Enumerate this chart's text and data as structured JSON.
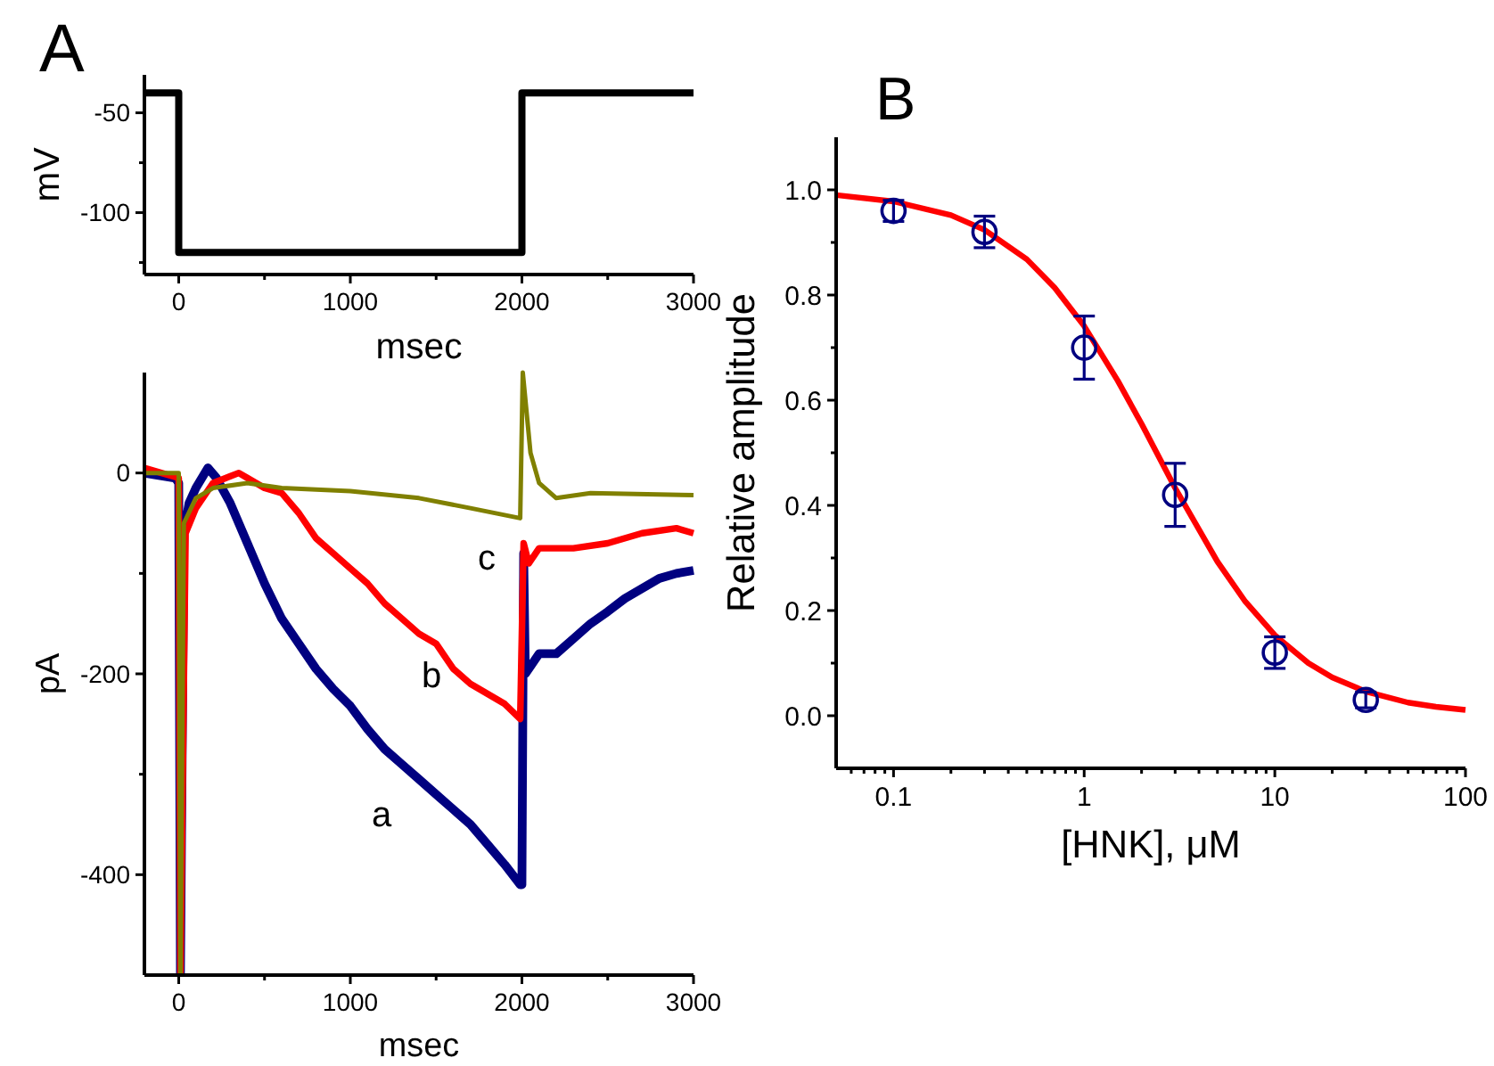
{
  "chart_data": [
    {
      "type": "line",
      "title": "A",
      "xlabel": "msec",
      "ylabel": "mV",
      "xlim": [
        -200,
        3000
      ],
      "ylim": [
        -131,
        -31
      ],
      "xticks": [
        0,
        {
          "value": 500,
          "label": null
        },
        1000,
        {
          "value": 1500,
          "label": null
        },
        2000,
        {
          "value": 2500,
          "label": null
        },
        3000
      ],
      "yticks": [
        {
          "value": -125,
          "label": null
        },
        -100,
        {
          "value": -75,
          "label": null
        },
        -50
      ],
      "series": [
        {
          "color": "#000000",
          "x": [
            -200,
            0,
            0,
            2000,
            2000,
            3000
          ],
          "values": [
            -40,
            -40,
            -120,
            -120,
            -40,
            -40
          ]
        }
      ]
    },
    {
      "type": "line",
      "xlabel": "msec",
      "ylabel": "pA",
      "xlim": [
        -200,
        3000
      ],
      "ylim": [
        -500,
        100
      ],
      "xticks": [
        0,
        {
          "value": 500,
          "label": null
        },
        1000,
        {
          "value": 1500,
          "label": null
        },
        2000,
        {
          "value": 2500,
          "label": null
        },
        3000
      ],
      "yticks": [
        -400,
        {
          "value": -300,
          "label": null
        },
        -200,
        {
          "value": -100,
          "label": null
        },
        0
      ],
      "series": [
        {
          "name": "a",
          "color": "#000080",
          "x": [
            -200,
            -20,
            0,
            10,
            30,
            60,
            100,
            170,
            220,
            300,
            400,
            500,
            600,
            700,
            800,
            900,
            1000,
            1100,
            1200,
            1300,
            1400,
            1500,
            1600,
            1700,
            1800,
            1900,
            1990,
            2000,
            2010,
            2020,
            2100,
            2200,
            2300,
            2400,
            2500,
            2600,
            2700,
            2800,
            2900,
            3000
          ],
          "values": [
            0,
            -5,
            -10,
            -500,
            -60,
            -30,
            -15,
            5,
            -5,
            -30,
            -70,
            -110,
            -145,
            -170,
            -195,
            -215,
            -232,
            -255,
            -275,
            -290,
            -305,
            -320,
            -335,
            -350,
            -370,
            -390,
            -410,
            -410,
            -80,
            -200,
            -180,
            -180,
            -165,
            -150,
            -138,
            -125,
            -115,
            -105,
            -100,
            -97
          ]
        },
        {
          "name": "b",
          "color": "#ff0000",
          "x": [
            -200,
            0,
            10,
            40,
            100,
            200,
            350,
            400,
            500,
            600,
            700,
            800,
            900,
            1000,
            1100,
            1200,
            1300,
            1400,
            1500,
            1600,
            1700,
            1800,
            1900,
            1990,
            2010,
            2040,
            2100,
            2300,
            2500,
            2700,
            2900,
            3000
          ],
          "values": [
            5,
            -5,
            -500,
            -60,
            -35,
            -10,
            0,
            -5,
            -15,
            -20,
            -40,
            -65,
            -80,
            -95,
            -110,
            -130,
            -145,
            -160,
            -170,
            -195,
            -210,
            -220,
            -230,
            -245,
            -70,
            -90,
            -75,
            -75,
            -70,
            -60,
            -55,
            -60
          ]
        },
        {
          "name": "c",
          "color": "#808000",
          "x": [
            -200,
            0,
            10,
            30,
            100,
            200,
            400,
            600,
            1000,
            1400,
            1700,
            1990,
            2005,
            2050,
            2100,
            2200,
            2400,
            3000
          ],
          "values": [
            0,
            0,
            -500,
            -50,
            -25,
            -15,
            -10,
            -15,
            -18,
            -25,
            -35,
            -45,
            100,
            20,
            -10,
            -25,
            -20,
            -22
          ]
        }
      ]
    },
    {
      "type": "scatter",
      "title": "B",
      "xlabel": "[HNK], μM",
      "ylabel": "Relative amplitude",
      "log": "x",
      "xlim": [
        0.05,
        100
      ],
      "ylim": [
        -0.1,
        1.1
      ],
      "xticks": [
        {
          "value": 0.06,
          "label": null
        },
        {
          "value": 0.07,
          "label": null
        },
        {
          "value": 0.08,
          "label": null
        },
        {
          "value": 0.09,
          "label": null
        },
        0.1,
        {
          "value": 0.2,
          "label": null
        },
        {
          "value": 0.3,
          "label": null
        },
        {
          "value": 0.4,
          "label": null
        },
        {
          "value": 0.5,
          "label": null
        },
        {
          "value": 0.6,
          "label": null
        },
        {
          "value": 0.7,
          "label": null
        },
        {
          "value": 0.8,
          "label": null
        },
        {
          "value": 0.9,
          "label": null
        },
        1,
        {
          "value": 2,
          "label": null
        },
        {
          "value": 3,
          "label": null
        },
        {
          "value": 4,
          "label": null
        },
        {
          "value": 5,
          "label": null
        },
        {
          "value": 6,
          "label": null
        },
        {
          "value": 7,
          "label": null
        },
        {
          "value": 8,
          "label": null
        },
        {
          "value": 9,
          "label": null
        },
        10,
        {
          "value": 20,
          "label": null
        },
        {
          "value": 30,
          "label": null
        },
        {
          "value": 40,
          "label": null
        },
        {
          "value": 50,
          "label": null
        },
        {
          "value": 60,
          "label": null
        },
        {
          "value": 70,
          "label": null
        },
        {
          "value": 80,
          "label": null
        },
        {
          "value": 90,
          "label": null
        },
        100
      ],
      "yticks": [
        {
          "value": 0,
          "label": "0.0"
        },
        {
          "value": 0.1,
          "label": null
        },
        {
          "value": 0.2,
          "label": "0.2"
        },
        {
          "value": 0.3,
          "label": null
        },
        {
          "value": 0.4,
          "label": "0.4"
        },
        {
          "value": 0.5,
          "label": null
        },
        {
          "value": 0.6,
          "label": "0.6"
        },
        {
          "value": 0.7,
          "label": null
        },
        {
          "value": 0.8,
          "label": "0.8"
        },
        {
          "value": 0.9,
          "label": null
        },
        {
          "value": 1,
          "label": "1.0"
        }
      ],
      "series": [
        {
          "type": "line",
          "color": "#ff0000",
          "x": [
            0.05,
            0.1,
            0.2,
            0.3,
            0.5,
            0.7,
            1,
            1.5,
            2,
            3,
            5,
            7,
            10,
            15,
            20,
            30,
            50,
            70,
            100
          ],
          "values": [
            0.99,
            0.978,
            0.952,
            0.924,
            0.868,
            0.814,
            0.741,
            0.637,
            0.555,
            0.433,
            0.293,
            0.217,
            0.153,
            0.1,
            0.073,
            0.046,
            0.025,
            0.017,
            0.011
          ]
        },
        {
          "marker": "circle",
          "color": "#000080",
          "x": [
            0.1,
            0.3,
            1,
            3,
            10,
            30
          ],
          "values": [
            0.96,
            0.92,
            0.7,
            0.42,
            0.12,
            0.03
          ],
          "errors": [
            0.02,
            0.03,
            0.06,
            0.06,
            0.03,
            0.015
          ]
        }
      ]
    }
  ]
}
